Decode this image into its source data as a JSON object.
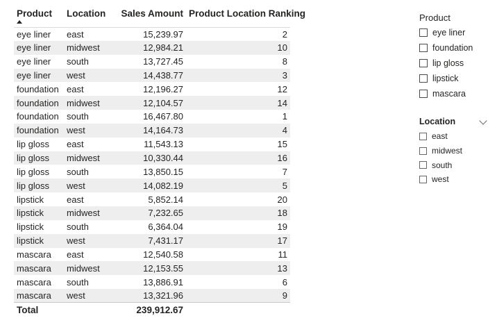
{
  "table": {
    "headers": {
      "product": "Product",
      "location": "Location",
      "sales": "Sales Amount",
      "ranking": "Product Location Ranking"
    },
    "rows": [
      {
        "product": "eye liner",
        "location": "east",
        "sales": "15,239.97",
        "rank": "2"
      },
      {
        "product": "eye liner",
        "location": "midwest",
        "sales": "12,984.21",
        "rank": "10"
      },
      {
        "product": "eye liner",
        "location": "south",
        "sales": "13,727.45",
        "rank": "8"
      },
      {
        "product": "eye liner",
        "location": "west",
        "sales": "14,438.77",
        "rank": "3"
      },
      {
        "product": "foundation",
        "location": "east",
        "sales": "12,196.27",
        "rank": "12"
      },
      {
        "product": "foundation",
        "location": "midwest",
        "sales": "12,104.57",
        "rank": "14"
      },
      {
        "product": "foundation",
        "location": "south",
        "sales": "16,467.80",
        "rank": "1"
      },
      {
        "product": "foundation",
        "location": "west",
        "sales": "14,164.73",
        "rank": "4"
      },
      {
        "product": "lip gloss",
        "location": "east",
        "sales": "11,543.13",
        "rank": "15"
      },
      {
        "product": "lip gloss",
        "location": "midwest",
        "sales": "10,330.44",
        "rank": "16"
      },
      {
        "product": "lip gloss",
        "location": "south",
        "sales": "13,850.15",
        "rank": "7"
      },
      {
        "product": "lip gloss",
        "location": "west",
        "sales": "14,082.19",
        "rank": "5"
      },
      {
        "product": "lipstick",
        "location": "east",
        "sales": "5,852.14",
        "rank": "20"
      },
      {
        "product": "lipstick",
        "location": "midwest",
        "sales": "7,232.65",
        "rank": "18"
      },
      {
        "product": "lipstick",
        "location": "south",
        "sales": "6,364.04",
        "rank": "19"
      },
      {
        "product": "lipstick",
        "location": "west",
        "sales": "7,431.17",
        "rank": "17"
      },
      {
        "product": "mascara",
        "location": "east",
        "sales": "12,540.58",
        "rank": "11"
      },
      {
        "product": "mascara",
        "location": "midwest",
        "sales": "12,153.55",
        "rank": "13"
      },
      {
        "product": "mascara",
        "location": "south",
        "sales": "13,886.91",
        "rank": "6"
      },
      {
        "product": "mascara",
        "location": "west",
        "sales": "13,321.96",
        "rank": "9"
      }
    ],
    "total": {
      "label": "Total",
      "sales": "239,912.67"
    }
  },
  "slicers": {
    "product": {
      "title": "Product",
      "options": [
        "eye liner",
        "foundation",
        "lip gloss",
        "lipstick",
        "mascara"
      ]
    },
    "location": {
      "title": "Location",
      "icon": "chevron-down-icon",
      "options": [
        "east",
        "midwest",
        "south",
        "west"
      ]
    }
  },
  "colors": {
    "stripe": "#eeeeee",
    "text": "#252423"
  }
}
